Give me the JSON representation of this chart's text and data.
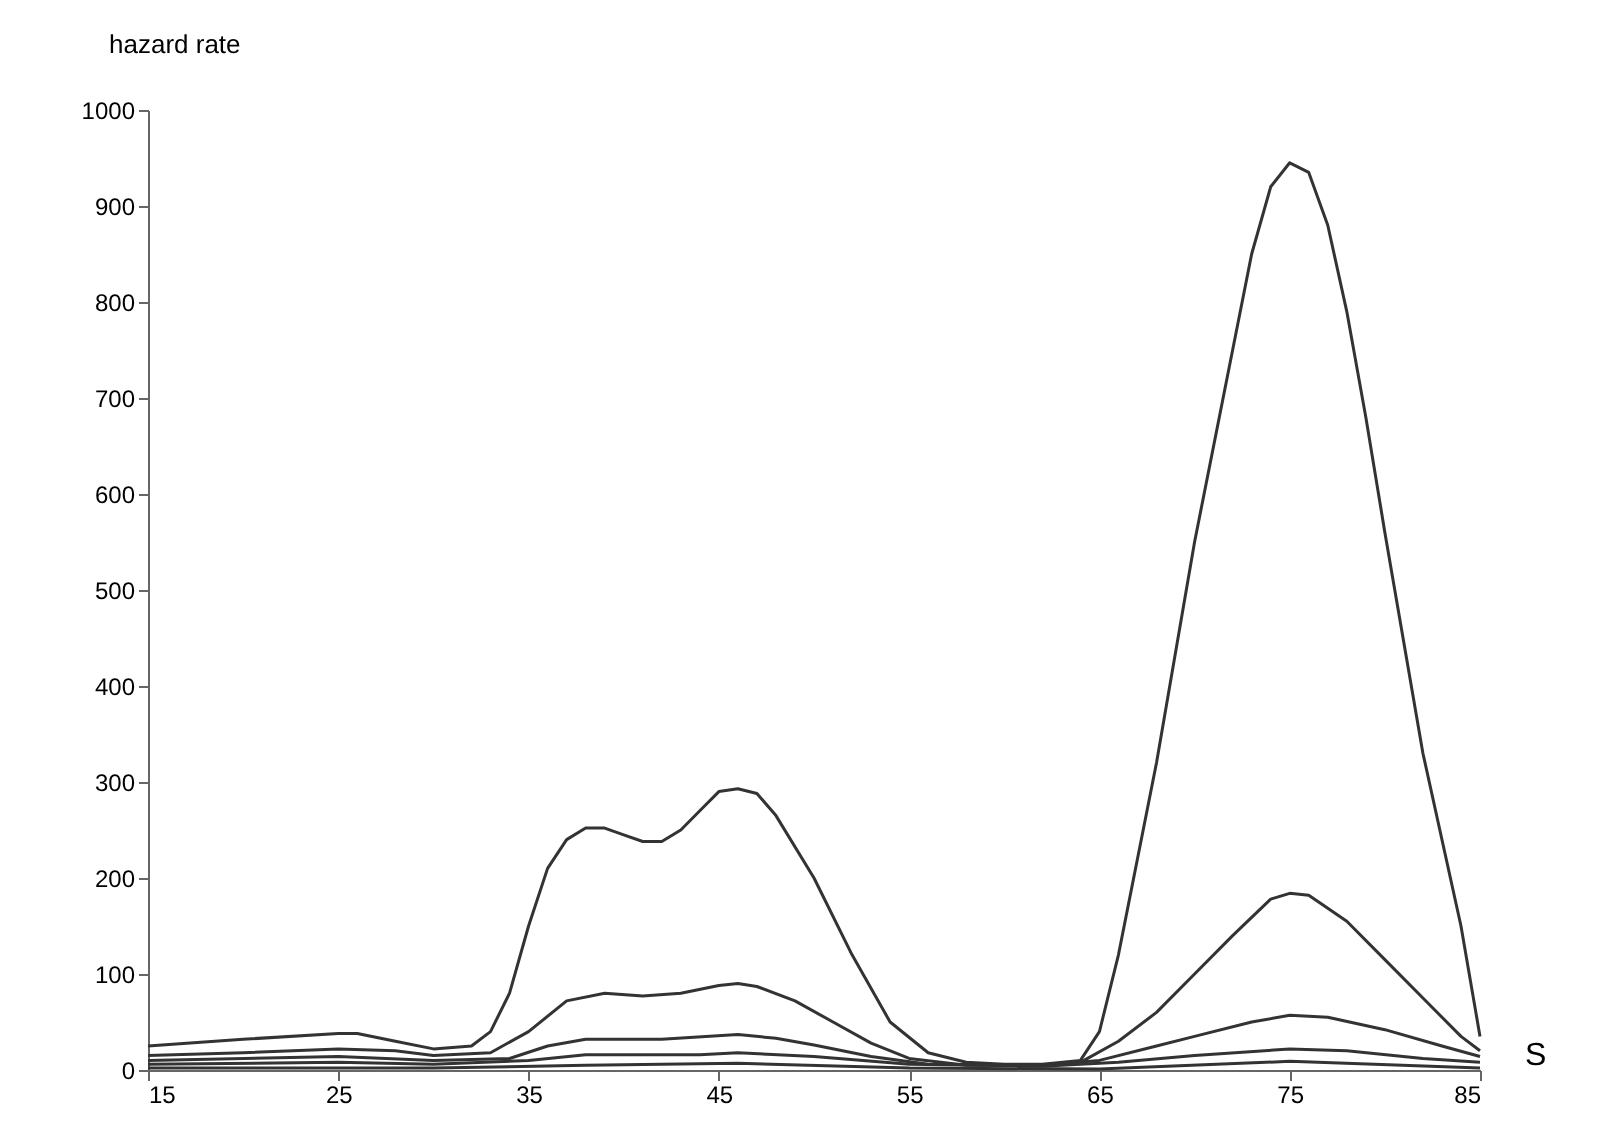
{
  "chart_data": {
    "type": "line",
    "xlabel": "S",
    "ylabel": "hazard rate",
    "xlim": [
      15,
      85
    ],
    "xticks": [
      15,
      25,
      35,
      45,
      55,
      65,
      75,
      85
    ],
    "ylim": [
      0,
      1000
    ],
    "yticks": [
      0,
      100,
      200,
      300,
      400,
      500,
      600,
      700,
      800,
      900,
      1000
    ],
    "grid": false,
    "legend": false,
    "marker": "none",
    "line_style": "solid",
    "series": [
      {
        "color": "#333333",
        "x": [
          15,
          20,
          25,
          26,
          28,
          30,
          32,
          33,
          34,
          35,
          36,
          37,
          38,
          39,
          40,
          41,
          42,
          43,
          44,
          45,
          46,
          47,
          48,
          50,
          52,
          54,
          56,
          58,
          60,
          62,
          64,
          65,
          66,
          68,
          70,
          72,
          73,
          74,
          75,
          76,
          77,
          78,
          79,
          80,
          82,
          84,
          85
        ],
        "values": [
          25,
          32,
          38,
          38,
          30,
          22,
          25,
          40,
          80,
          150,
          210,
          240,
          252,
          252,
          245,
          238,
          238,
          250,
          270,
          290,
          293,
          288,
          265,
          200,
          120,
          50,
          18,
          8,
          6,
          6,
          10,
          40,
          120,
          320,
          550,
          750,
          850,
          920,
          945,
          935,
          880,
          790,
          680,
          560,
          330,
          150,
          35
        ]
      },
      {
        "color": "#333333",
        "x": [
          15,
          20,
          25,
          28,
          30,
          33,
          35,
          37,
          39,
          41,
          43,
          45,
          46,
          47,
          49,
          51,
          53,
          55,
          58,
          62,
          64,
          66,
          68,
          70,
          72,
          74,
          75,
          76,
          78,
          80,
          82,
          84,
          85
        ],
        "values": [
          15,
          18,
          22,
          20,
          15,
          18,
          40,
          72,
          80,
          77,
          80,
          88,
          90,
          87,
          72,
          50,
          28,
          12,
          5,
          5,
          8,
          30,
          60,
          100,
          140,
          178,
          184,
          182,
          155,
          115,
          75,
          35,
          20
        ]
      },
      {
        "color": "#333333",
        "x": [
          15,
          25,
          30,
          34,
          36,
          38,
          42,
          46,
          48,
          50,
          53,
          56,
          62,
          65,
          68,
          70,
          73,
          75,
          77,
          80,
          83,
          85
        ],
        "values": [
          10,
          14,
          10,
          12,
          25,
          32,
          32,
          37,
          33,
          26,
          14,
          6,
          5,
          10,
          25,
          35,
          50,
          57,
          55,
          42,
          25,
          14
        ]
      },
      {
        "color": "#333333",
        "x": [
          15,
          25,
          30,
          35,
          38,
          44,
          46,
          50,
          55,
          62,
          66,
          70,
          75,
          78,
          82,
          85
        ],
        "values": [
          6,
          8,
          6,
          10,
          16,
          16,
          18,
          14,
          6,
          4,
          8,
          15,
          22,
          20,
          12,
          8
        ]
      },
      {
        "color": "#333333",
        "x": [
          15,
          30,
          38,
          46,
          55,
          65,
          75,
          85
        ],
        "values": [
          2,
          2,
          5,
          7,
          2,
          1,
          9,
          2
        ]
      }
    ]
  }
}
